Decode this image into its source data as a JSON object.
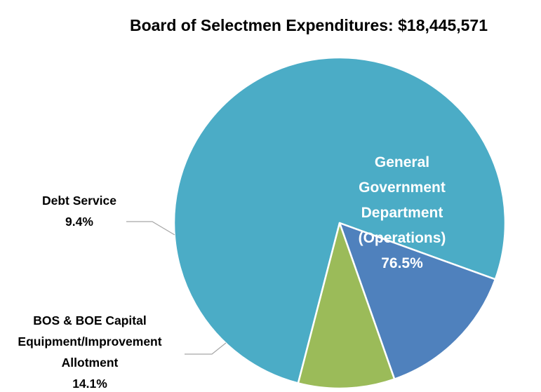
{
  "chart_data": {
    "type": "pie",
    "title": "Board of Selectmen Expenditures: $18,445,571",
    "slices": [
      {
        "name_lines": [
          "General",
          "Government",
          "Department",
          "(Operations)"
        ],
        "value": 76.5,
        "value_label": "76.5%",
        "color": "#4bacc6"
      },
      {
        "name_lines": [
          "BOS & BOE Capital",
          "Equipment/Improvement",
          "Allotment"
        ],
        "value": 14.1,
        "value_label": "14.1%",
        "color": "#4f81bd"
      },
      {
        "name_lines": [
          "Debt Service"
        ],
        "value": 9.4,
        "value_label": "9.4%",
        "color": "#9bbb59"
      }
    ],
    "label_placement": [
      "inside",
      "outside-left",
      "outside-left"
    ]
  }
}
